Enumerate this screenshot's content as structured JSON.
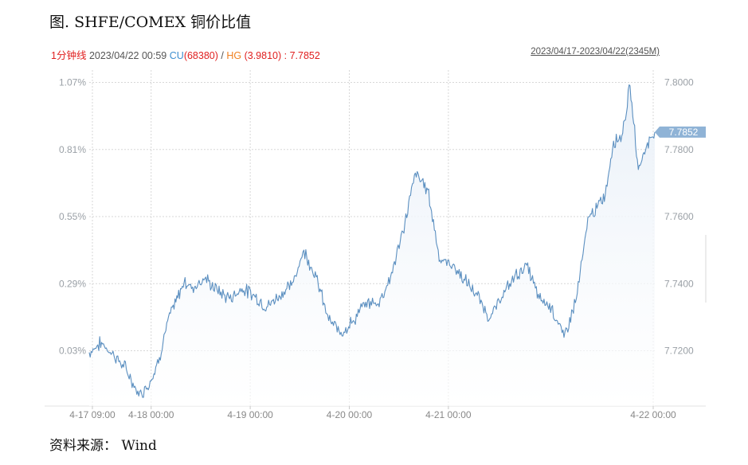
{
  "header": {
    "title": "图. SHFE/COMEX 铜价比值"
  },
  "infobar": {
    "period": "1分钟线",
    "datetime": "2023/04/22 00:59",
    "cu_label": "CU",
    "cu_value": "(68380)",
    "slash": "/",
    "hg_label": "HG",
    "hg_value": "(3.9810)",
    "ratio": ": 7.7852",
    "range": "2023/04/17-2023/04/22(2345M)"
  },
  "footer": {
    "source": "资料来源： Wind"
  },
  "colors": {
    "line": "#5b8fc0",
    "fill": "#e9f0f8",
    "grid": "#d7d7d7",
    "badge": "#8fb3d6"
  },
  "chart_data": {
    "type": "area",
    "x_ticks": [
      "4-17 09:00",
      "4-18 00:00",
      "4-19 00:00",
      "4-20 00:00",
      "4-21 00:00",
      "4-22 00:00"
    ],
    "y_left_ticks": [
      "1.07%",
      "0.81%",
      "0.55%",
      "0.29%",
      "0.03%"
    ],
    "y_right_ticks": [
      "7.8000",
      "7.7800",
      "7.7600",
      "7.7400",
      "7.7200"
    ],
    "ylim": [
      7.7035,
      7.8025
    ],
    "last_value_label": "7.7852",
    "x_hours_since_start": [
      0,
      3,
      6,
      9,
      12,
      15,
      17,
      19,
      21,
      23,
      25,
      28,
      31,
      34,
      37,
      40,
      43,
      46,
      49,
      52,
      55,
      58,
      61,
      64,
      67,
      70,
      73,
      76,
      79,
      82,
      85,
      88,
      91,
      94,
      97,
      100,
      103,
      106,
      109,
      112,
      115,
      118,
      121,
      123,
      125,
      127,
      129,
      131,
      133,
      135,
      137
    ],
    "values": [
      7.7195,
      7.7225,
      7.7185,
      7.7145,
      7.7065,
      7.711,
      7.718,
      7.729,
      7.7345,
      7.7405,
      7.739,
      7.7415,
      7.738,
      7.7355,
      7.7385,
      7.7365,
      7.733,
      7.7365,
      7.7395,
      7.75,
      7.742,
      7.729,
      7.7255,
      7.729,
      7.7345,
      7.734,
      7.742,
      7.7555,
      7.773,
      7.768,
      7.747,
      7.7455,
      7.741,
      7.7365,
      7.7295,
      7.736,
      7.742,
      7.7455,
      7.7355,
      7.733,
      7.724,
      7.7355,
      7.76,
      7.7625,
      7.7665,
      7.7825,
      7.784,
      7.799,
      7.774,
      7.781,
      7.7852
    ]
  }
}
